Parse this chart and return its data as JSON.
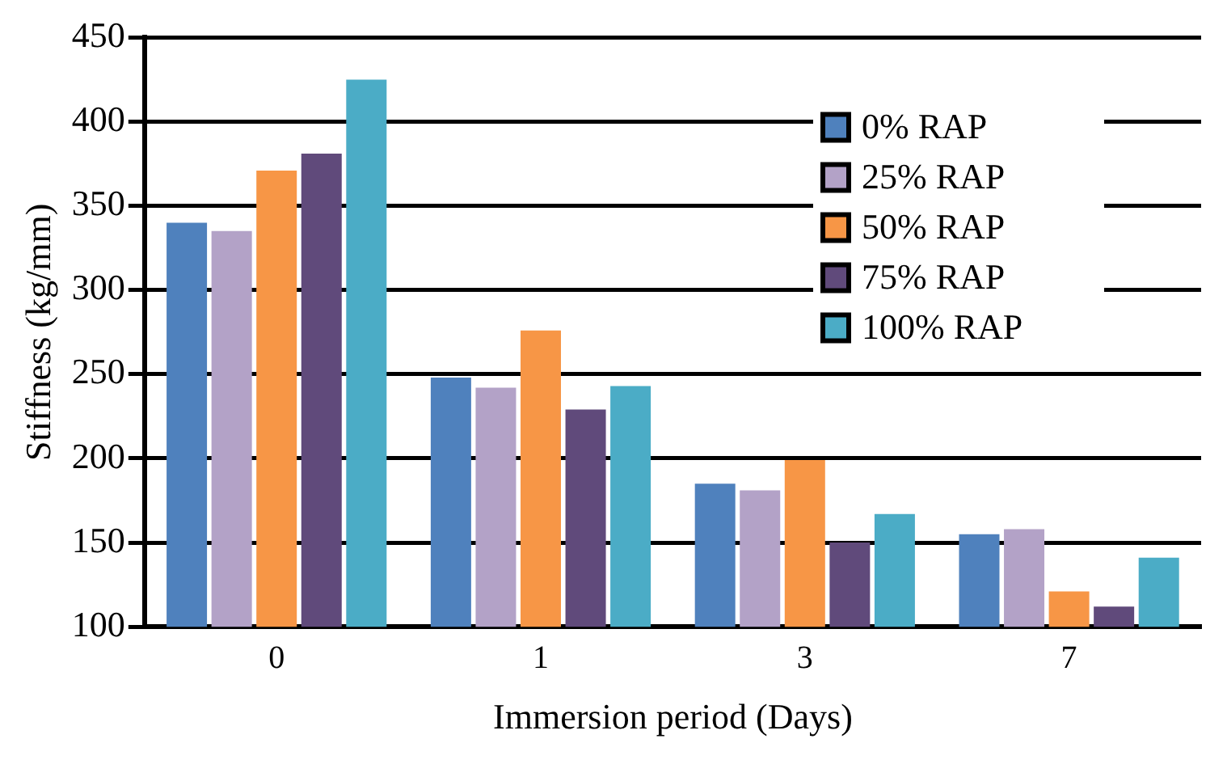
{
  "chart_data": {
    "type": "bar",
    "xlabel": "Immersion period (Days)",
    "ylabel": "Stiffness (kg/mm)",
    "categories": [
      "0",
      "1",
      "3",
      "7"
    ],
    "series": [
      {
        "name": "0% RAP",
        "color": "#4f81bd",
        "values": [
          340,
          248,
          185,
          155
        ]
      },
      {
        "name": "25% RAP",
        "color": "#b3a2c7",
        "values": [
          335,
          242,
          181,
          158
        ]
      },
      {
        "name": "50% RAP",
        "color": "#f79646",
        "values": [
          371,
          276,
          199,
          121
        ]
      },
      {
        "name": "75% RAP",
        "color": "#604a7b",
        "values": [
          381,
          229,
          150,
          112
        ]
      },
      {
        "name": "100% RAP",
        "color": "#4bacc6",
        "values": [
          425,
          243,
          167,
          141
        ]
      }
    ],
    "ylim": [
      100,
      450
    ],
    "yticks": [
      100,
      150,
      200,
      250,
      300,
      350,
      400,
      450
    ],
    "grid": "y",
    "legend": "top right"
  }
}
